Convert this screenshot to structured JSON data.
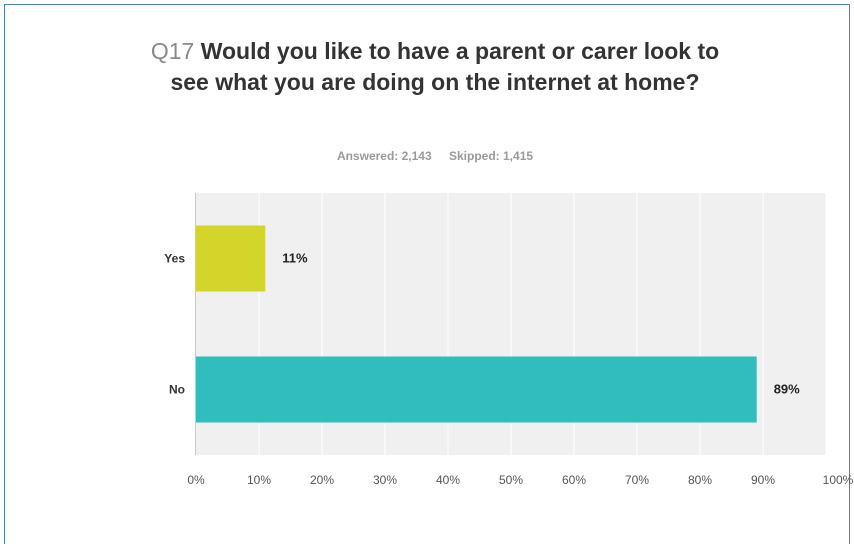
{
  "question": {
    "number": "Q17",
    "text": "Would you like to have a parent or carer look to see what you are doing on the internet at home?"
  },
  "stats": {
    "answered": "Answered: 2,143",
    "skipped": "Skipped: 1,415"
  },
  "colors": {
    "yes_bar": "#d3d52a",
    "no_bar": "#31bcbe",
    "plot_bg": "#f0f0f0",
    "grid": "#ffffff",
    "frame": "#4f81bd"
  },
  "chart_data": {
    "type": "bar",
    "orientation": "horizontal",
    "title": "Q17 Would you like to have a parent or carer look to see what you are doing on the internet at home?",
    "categories": [
      "Yes",
      "No"
    ],
    "values": [
      11,
      89
    ],
    "data_labels": [
      "11%",
      "89%"
    ],
    "xlim": [
      0,
      100
    ],
    "x_ticks": [
      "0%",
      "10%",
      "20%",
      "30%",
      "40%",
      "50%",
      "60%",
      "70%",
      "80%",
      "90%",
      "100%"
    ],
    "grid": true,
    "legend": "none"
  }
}
